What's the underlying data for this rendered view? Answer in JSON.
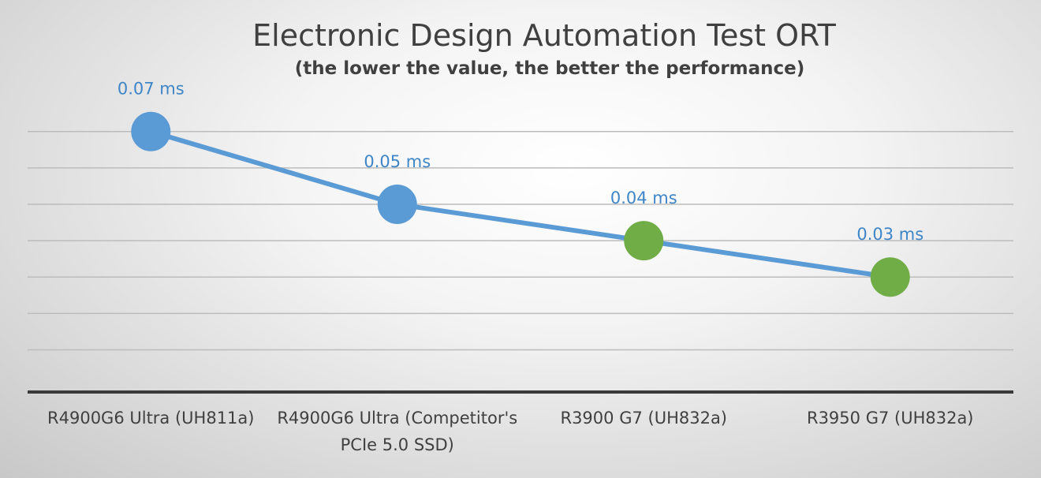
{
  "chart_data": {
    "type": "line",
    "title": "Electronic Design Automation Test ORT",
    "subtitle": "(the lower the value, the better the performance)",
    "xlabel": "",
    "ylabel": "",
    "unit": "ms",
    "categories": [
      [
        "R4900G6 Ultra (UH811a)"
      ],
      [
        "R4900G6 Ultra (Competitor's",
        "PCIe 5.0 SSD)"
      ],
      [
        "R3900 G7 (UH832a)"
      ],
      [
        "R3950 G7 (UH832a)"
      ]
    ],
    "values": [
      0.07,
      0.05,
      0.04,
      0.03
    ],
    "data_labels": [
      "0.07 ms",
      "0.05 ms",
      "0.04 ms",
      "0.03 ms"
    ],
    "ylim": [
      0,
      0.08
    ],
    "grid": true,
    "legend": "none",
    "line_color": "#5b9bd5",
    "marker_colors": [
      "#5b9bd5",
      "#5b9bd5",
      "#70ad47",
      "#70ad47"
    ],
    "label_color": "#3f86c8"
  }
}
